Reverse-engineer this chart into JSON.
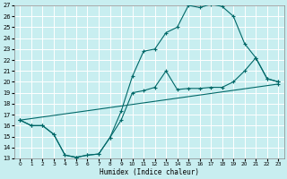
{
  "xlabel": "Humidex (Indice chaleur)",
  "bg_color": "#c8eef0",
  "grid_color": "#ffffff",
  "line_color": "#006868",
  "xlim": [
    -0.5,
    23.5
  ],
  "ylim": [
    13,
    27
  ],
  "xticks": [
    0,
    1,
    2,
    3,
    4,
    5,
    6,
    7,
    8,
    9,
    10,
    11,
    12,
    13,
    14,
    15,
    16,
    17,
    18,
    19,
    20,
    21,
    22,
    23
  ],
  "yticks": [
    13,
    14,
    15,
    16,
    17,
    18,
    19,
    20,
    21,
    22,
    23,
    24,
    25,
    26,
    27
  ],
  "line1_x": [
    0,
    1,
    2,
    3,
    4,
    5,
    6,
    7,
    8,
    9,
    10,
    11,
    12,
    13,
    14,
    15,
    16,
    17,
    18,
    19,
    20,
    21,
    22,
    23
  ],
  "line1_y": [
    16.5,
    16.0,
    16.0,
    15.2,
    13.3,
    13.1,
    13.3,
    13.4,
    14.9,
    16.5,
    19.0,
    19.2,
    19.5,
    21.0,
    19.3,
    19.4,
    19.4,
    19.5,
    19.5,
    20.0,
    21.0,
    22.2,
    20.3,
    20.0
  ],
  "line2_x": [
    0,
    23
  ],
  "line2_y": [
    16.5,
    19.8
  ],
  "line3_x": [
    0,
    1,
    2,
    3,
    4,
    5,
    6,
    7,
    8,
    9,
    10,
    11,
    12,
    13,
    14,
    15,
    16,
    17,
    18,
    19,
    20,
    21,
    22,
    23
  ],
  "line3_y": [
    16.5,
    16.0,
    16.0,
    15.2,
    13.3,
    13.1,
    13.3,
    13.4,
    14.9,
    17.3,
    20.5,
    22.8,
    23.0,
    24.5,
    25.0,
    27.0,
    26.8,
    27.1,
    26.9,
    26.0,
    23.5,
    22.2,
    20.3,
    20.0
  ]
}
